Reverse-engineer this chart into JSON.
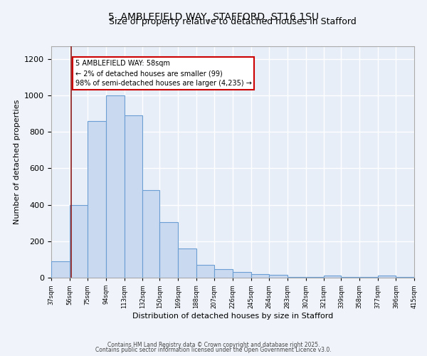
{
  "title_line1": "5, AMBLEFIELD WAY, STAFFORD, ST16 1SU",
  "title_line2": "Size of property relative to detached houses in Stafford",
  "xlabel": "Distribution of detached houses by size in Stafford",
  "ylabel": "Number of detached properties",
  "bar_edges": [
    37,
    56,
    75,
    94,
    113,
    132,
    150,
    169,
    188,
    207,
    226,
    245,
    264,
    283,
    302,
    321,
    339,
    358,
    377,
    396,
    415
  ],
  "bar_heights": [
    90,
    400,
    860,
    1000,
    890,
    480,
    305,
    160,
    70,
    45,
    30,
    20,
    15,
    5,
    5,
    10,
    5,
    5,
    10,
    5
  ],
  "bar_color": "#c9d9f0",
  "bar_edge_color": "#6b9fd4",
  "vline_x": 58,
  "vline_color": "#8b1a1a",
  "annotation_text": "5 AMBLEFIELD WAY: 58sqm\n← 2% of detached houses are smaller (99)\n98% of semi-detached houses are larger (4,235) →",
  "annotation_box_color": "#ffffff",
  "annotation_box_edge_color": "#cc0000",
  "ylim": [
    0,
    1270
  ],
  "background_color": "#e8eef8",
  "fig_background_color": "#f0f4fa",
  "grid_color": "#ffffff",
  "tick_labels": [
    "37sqm",
    "56sqm",
    "75sqm",
    "94sqm",
    "113sqm",
    "132sqm",
    "150sqm",
    "169sqm",
    "188sqm",
    "207sqm",
    "226sqm",
    "245sqm",
    "264sqm",
    "283sqm",
    "302sqm",
    "321sqm",
    "339sqm",
    "358sqm",
    "377sqm",
    "396sqm",
    "415sqm"
  ],
  "footer_line1": "Contains HM Land Registry data © Crown copyright and database right 2025.",
  "footer_line2": "Contains public sector information licensed under the Open Government Licence v3.0."
}
